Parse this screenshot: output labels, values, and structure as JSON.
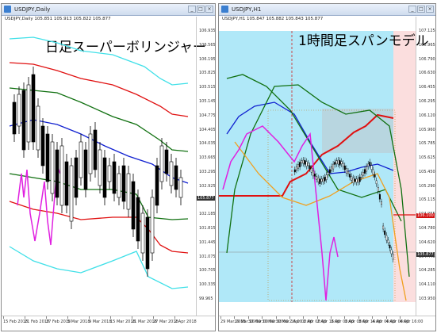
{
  "left": {
    "window_title": "USDJPY,Daily",
    "subtitle": "USDJPY,Daily  105.851 105.913 105.822 105.877",
    "big_title": "日足スーパーボリンジャー",
    "prices": [
      "106.935",
      "106.565",
      "106.195",
      "105.825",
      "105.515",
      "105.145",
      "104.775",
      "104.405",
      "104.035",
      "103.665",
      "103.295",
      "102.925",
      "102.555",
      "102.185",
      "101.815",
      "101.445",
      "101.075",
      "100.705",
      "100.335",
      "99.965"
    ],
    "price_tag": "105.877",
    "dates": [
      "15 Feb 2018",
      "21 Feb 2018",
      "27 Feb 2018",
      "5 Mar 2018",
      "9 Mar 2018",
      "15 Mar 2018",
      "21 Mar 2018",
      "27 Mar 2018",
      "2 Apr 2018"
    ]
  },
  "right": {
    "window_title": "USDJPY,H1",
    "subtitle": "USDJPY,H1  105.847 105.882 105.843 105.877",
    "big_title": "1時間足スパンモデル",
    "prices": [
      "107.125",
      "106.965",
      "106.790",
      "106.630",
      "106.455",
      "106.295",
      "106.120",
      "105.960",
      "105.785",
      "105.625",
      "105.450",
      "105.290",
      "105.115",
      "104.955",
      "104.780",
      "104.620",
      "104.445",
      "104.285",
      "104.110",
      "103.950"
    ],
    "price_tag": "105.877",
    "red_tag": "106.100",
    "dates": [
      "29 Mar 2018",
      "29 Mar 16:00",
      "30 Mar 00:00",
      "30 Mar 08:00",
      "30 Mar 16:00",
      "2 Apr 00:00",
      "2 Apr 08:00",
      "2 Apr 16:00",
      "3 Apr 00:00",
      "3 Apr 08:00",
      "3 Apr 16:00",
      "4 Apr 00:00",
      "4 Apr 08:00",
      "4 Apr 16:00"
    ]
  },
  "colors": {
    "cyan": "#40e0e8",
    "red": "#e01010",
    "green": "#107010",
    "blue": "#1020d0",
    "magenta": "#e020e0",
    "orange": "#f0a020",
    "span_blue": "#b0e8f8",
    "span_pink": "#f8c8c8"
  }
}
